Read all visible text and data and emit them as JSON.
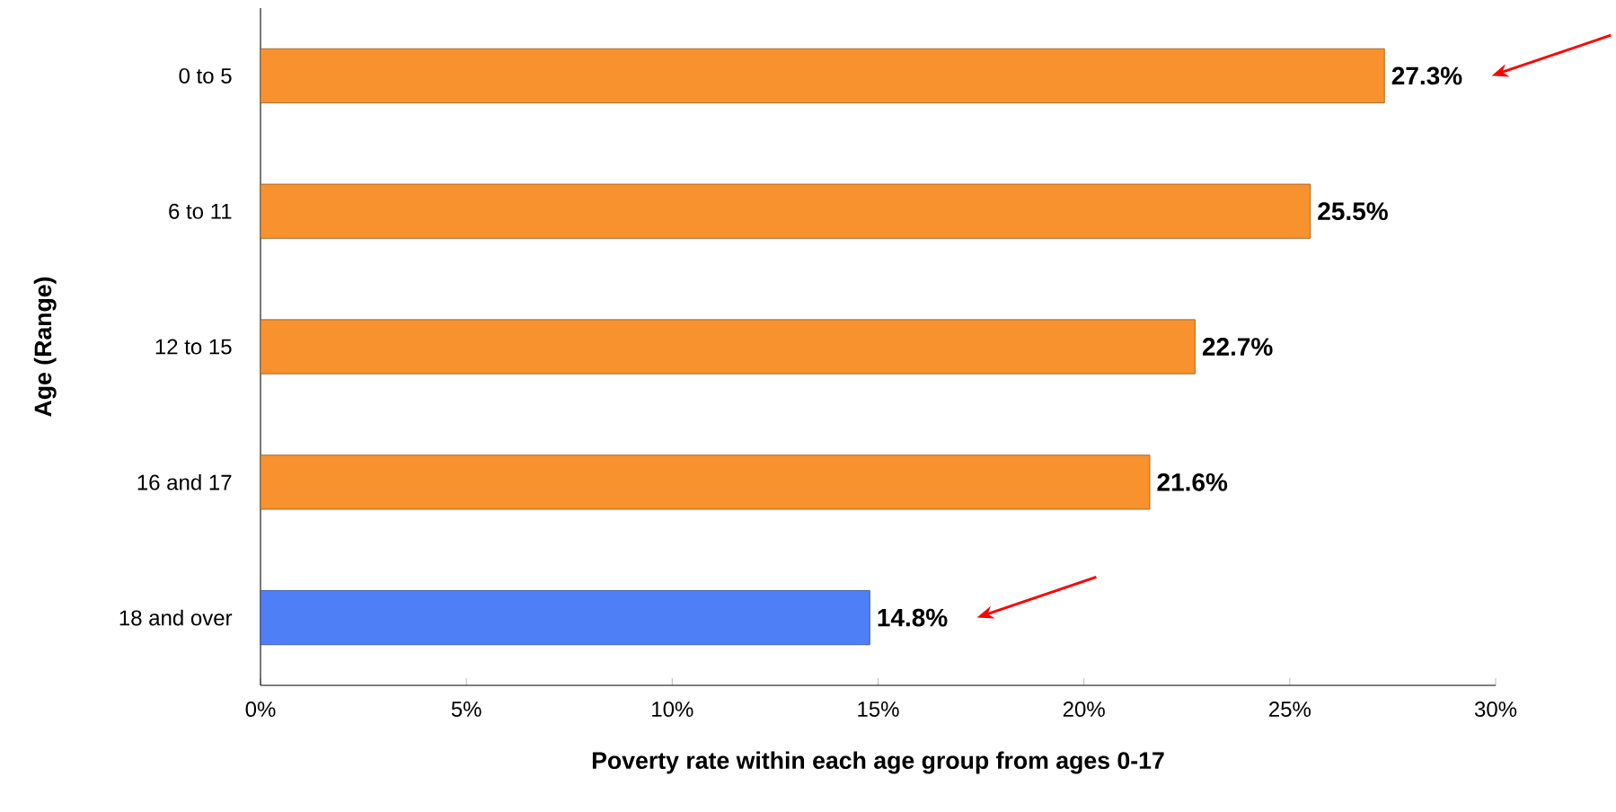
{
  "chart_data": {
    "type": "bar",
    "orientation": "horizontal",
    "xlabel": "Poverty rate within each age group from ages 0-17",
    "ylabel": "Age (Range)",
    "categories": [
      "0 to 5",
      "6 to 11",
      "12 to 15",
      "16 and 17",
      "18 and over"
    ],
    "values": [
      27.3,
      25.5,
      22.7,
      21.6,
      14.8
    ],
    "colors": [
      "#f7922e",
      "#f7922e",
      "#f7922e",
      "#f7922e",
      "#4f7ff7"
    ],
    "value_labels": [
      "27.3%",
      "25.5%",
      "22.7%",
      "21.6%",
      "14.8%"
    ],
    "xlim": [
      0,
      30
    ],
    "xticks": [
      {
        "value": 0,
        "label": "0%"
      },
      {
        "value": 5,
        "label": "5%"
      },
      {
        "value": 10,
        "label": "10%"
      },
      {
        "value": 15,
        "label": "15%"
      },
      {
        "value": 20,
        "label": "20%"
      },
      {
        "value": 25,
        "label": "25%"
      },
      {
        "value": 30,
        "label": "30%"
      }
    ],
    "grid": false
  }
}
